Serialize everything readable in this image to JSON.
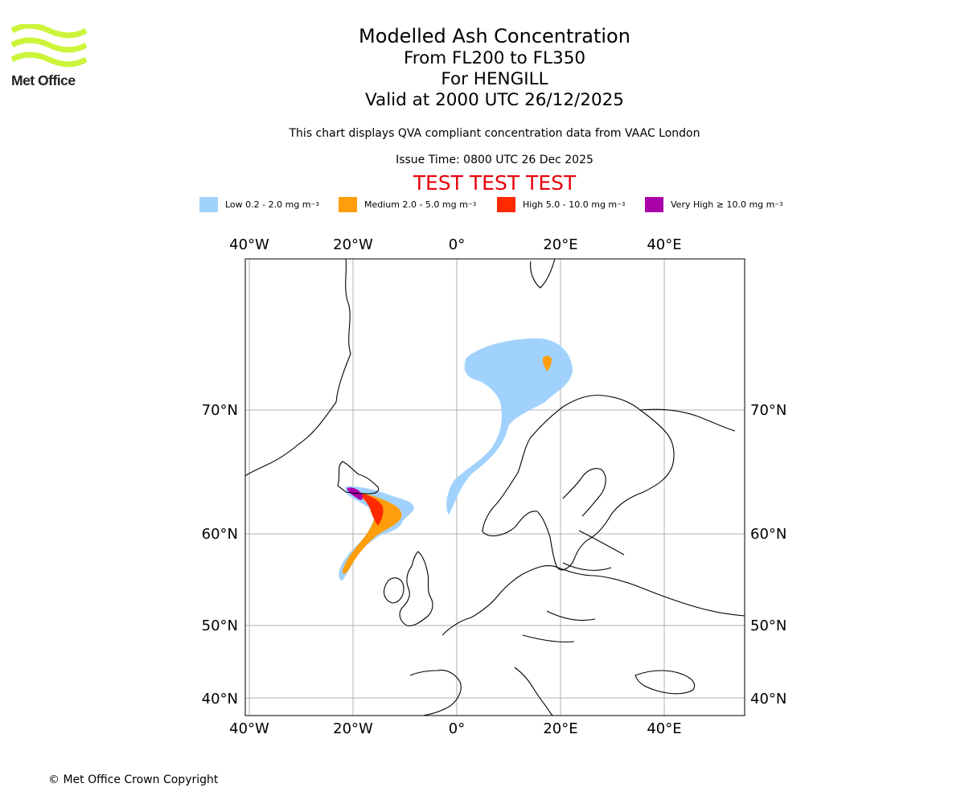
{
  "logo": {
    "text": "Met Office"
  },
  "header": {
    "title": "Modelled Ash Concentration",
    "levels": "From FL200 to FL350",
    "volcano": "For HENGILL",
    "valid": "Valid at 2000 UTC 26/12/2025",
    "description": "This chart displays QVA compliant concentration data from VAAC London",
    "issue_time": "Issue Time: 0800 UTC 26 Dec 2025",
    "test_banner": "TEST TEST TEST"
  },
  "legend": [
    {
      "label": "Low 0.2 - 2.0 mg m",
      "unit_sup": "−3",
      "color": "#a1d2fd"
    },
    {
      "label": "Medium 2.0 - 5.0 mg m",
      "unit_sup": "−3",
      "color": "#ff9d0b"
    },
    {
      "label": "High 5.0 - 10.0 mg m",
      "unit_sup": "−3",
      "color": "#ff2a00"
    },
    {
      "label": "Very High  ≥  10.0 mg m",
      "unit_sup": "−3",
      "color": "#aa00aa"
    }
  ],
  "map": {
    "lon_labels": [
      "40°W",
      "20°W",
      "0°",
      "20°E",
      "40°E"
    ],
    "lat_labels": [
      "70°N",
      "60°N",
      "50°N",
      "40°N"
    ],
    "grid": true
  },
  "footer": {
    "copyright": "© Met Office Crown Copyright"
  }
}
